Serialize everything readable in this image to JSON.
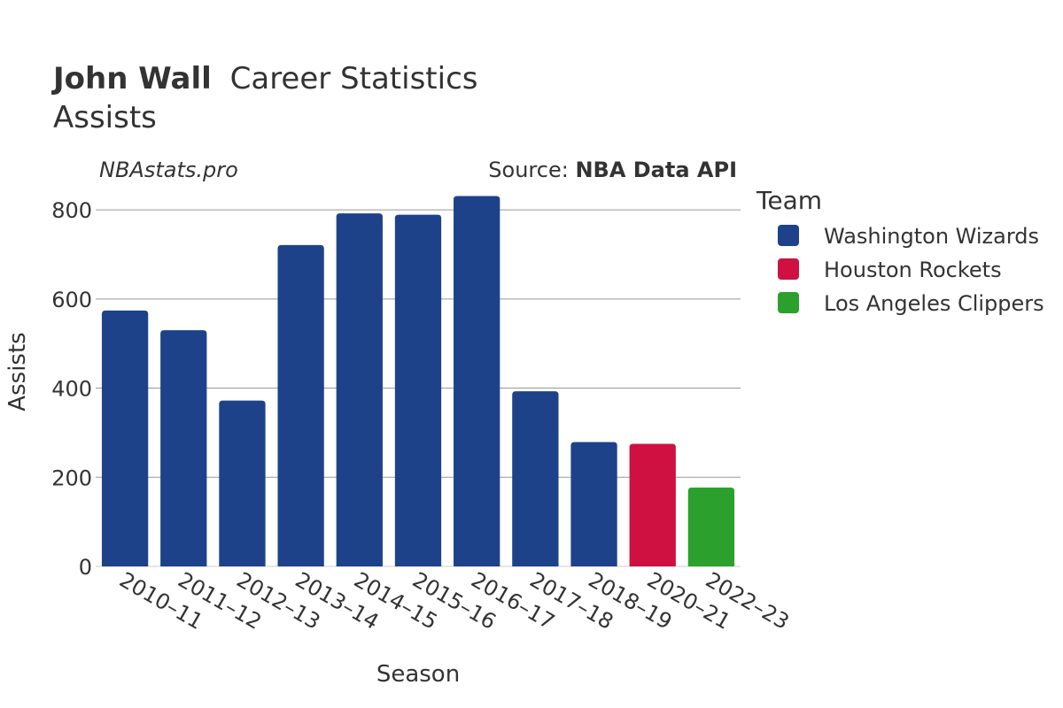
{
  "header": {
    "title_bold": "John Wall",
    "title_rest": "Career Statistics",
    "subtitle": "Assists"
  },
  "watermark": "NBAstats.pro",
  "source": {
    "prefix": "Source: ",
    "name": "NBA Data API"
  },
  "legend": {
    "title": "Team"
  },
  "colors": {
    "Washington Wizards": "#1d428a",
    "Houston Rockets": "#ce1141",
    "Los Angeles Clippers": "#2ca02c",
    "grid": "#999999",
    "text": "#333333"
  },
  "chart_data": {
    "type": "bar",
    "xlabel": "Season",
    "ylabel": "Assists",
    "ylim": [
      0,
      830
    ],
    "yticks": [
      0,
      200,
      400,
      600,
      800
    ],
    "grid": true,
    "legend_position": "right",
    "categories": [
      "2010–11",
      "2011–12",
      "2012–13",
      "2013–14",
      "2014–15",
      "2015–16",
      "2016–17",
      "2017–18",
      "2018–19",
      "2020–21",
      "2022–23"
    ],
    "series": [
      {
        "name": "Washington Wizards",
        "values": [
          574,
          530,
          372,
          721,
          792,
          789,
          831,
          393,
          279,
          null,
          null
        ]
      },
      {
        "name": "Houston Rockets",
        "values": [
          null,
          null,
          null,
          null,
          null,
          null,
          null,
          null,
          null,
          275,
          null
        ]
      },
      {
        "name": "Los Angeles Clippers",
        "values": [
          null,
          null,
          null,
          null,
          null,
          null,
          null,
          null,
          null,
          null,
          177
        ]
      }
    ]
  }
}
